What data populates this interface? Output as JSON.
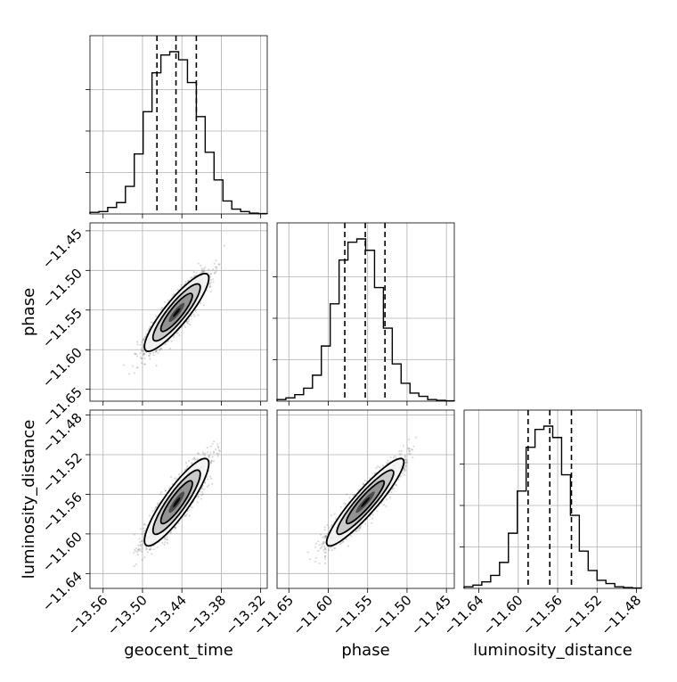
{
  "chart_data": {
    "type": "corner",
    "parameters": [
      {
        "name": "geocent_time",
        "range": [
          -13.58,
          -13.31
        ],
        "ticks": [
          -13.56,
          -13.5,
          -13.44,
          -13.38,
          -13.32
        ],
        "tick_labels": [
          "−13.56",
          "−13.50",
          "−13.44",
          "−13.38",
          "−13.32"
        ],
        "quantiles": [
          -13.478,
          -13.449,
          -13.418
        ],
        "hist": [
          0.01,
          0.015,
          0.04,
          0.07,
          0.17,
          0.37,
          0.63,
          0.87,
          0.98,
          1.0,
          0.95,
          0.81,
          0.6,
          0.38,
          0.21,
          0.08,
          0.03,
          0.015,
          0.005,
          0.002
        ]
      },
      {
        "name": "phase",
        "range": [
          -11.665,
          -11.44
        ],
        "ticks": [
          -11.65,
          -11.6,
          -11.55,
          -11.5,
          -11.45
        ],
        "tick_labels": [
          "−11.65",
          "−11.60",
          "−11.55",
          "−11.50",
          "−11.45"
        ],
        "quantiles": [
          -11.579,
          -11.553,
          -11.528
        ],
        "hist": [
          0.01,
          0.02,
          0.04,
          0.08,
          0.16,
          0.34,
          0.6,
          0.87,
          0.98,
          1.0,
          0.93,
          0.7,
          0.45,
          0.23,
          0.11,
          0.05,
          0.03,
          0.01,
          0.005,
          0.002
        ]
      },
      {
        "name": "luminosity_distance",
        "range": [
          -11.655,
          -11.475
        ],
        "ticks": [
          -11.64,
          -11.6,
          -11.56,
          -11.52,
          -11.48
        ],
        "tick_labels": [
          "−11.64",
          "−11.60",
          "−11.56",
          "−11.52",
          "−11.48"
        ],
        "quantiles": [
          -11.59,
          -11.568,
          -11.546
        ],
        "hist": [
          0.01,
          0.02,
          0.04,
          0.08,
          0.16,
          0.34,
          0.6,
          0.87,
          0.98,
          1.0,
          0.93,
          0.7,
          0.45,
          0.23,
          0.11,
          0.05,
          0.03,
          0.01,
          0.005,
          0.002
        ]
      }
    ],
    "pairs": [
      {
        "x": "geocent_time",
        "y": "phase",
        "center": [
          -13.448,
          -11.553
        ],
        "sigma": [
          0.02,
          0.02
        ],
        "corr": 0.88,
        "n_samples": 4000
      },
      {
        "x": "geocent_time",
        "y": "luminosity_distance",
        "center": [
          -13.448,
          -11.568
        ],
        "sigma": [
          0.02,
          0.018
        ],
        "corr": 0.88,
        "n_samples": 4000
      },
      {
        "x": "phase",
        "y": "luminosity_distance",
        "center": [
          -11.553,
          -11.568
        ],
        "sigma": [
          0.02,
          0.018
        ],
        "corr": 0.92,
        "n_samples": 4000
      }
    ],
    "grid": true,
    "colors": {
      "line": "#000000",
      "grid": "#b0b0b0",
      "samples": "#555555"
    }
  }
}
